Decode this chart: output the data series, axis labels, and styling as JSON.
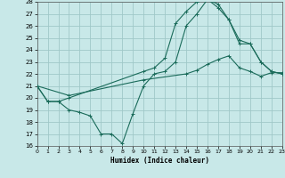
{
  "xlabel": "Humidex (Indice chaleur)",
  "xlim": [
    0,
    23
  ],
  "ylim": [
    16,
    28
  ],
  "yticks": [
    16,
    17,
    18,
    19,
    20,
    21,
    22,
    23,
    24,
    25,
    26,
    27,
    28
  ],
  "xticks": [
    0,
    1,
    2,
    3,
    4,
    5,
    6,
    7,
    8,
    9,
    10,
    11,
    12,
    13,
    14,
    15,
    16,
    17,
    18,
    19,
    20,
    21,
    22,
    23
  ],
  "bg_color": "#c8e8e8",
  "grid_color": "#a0c8c8",
  "line_color": "#1a6b5a",
  "lines": [
    {
      "x": [
        0,
        1,
        2,
        3,
        4,
        5,
        6,
        7,
        8,
        9,
        10,
        11,
        12,
        13,
        14,
        15,
        16,
        17,
        18,
        19,
        20,
        21,
        22,
        23
      ],
      "y": [
        21,
        19.7,
        19.7,
        19,
        18.8,
        18.5,
        17,
        17,
        16.2,
        18.7,
        21,
        22,
        22.2,
        23,
        26,
        27,
        28.2,
        27.8,
        26.5,
        24.5,
        24.5,
        23,
        22.2,
        22
      ]
    },
    {
      "x": [
        0,
        1,
        2,
        3,
        10,
        11,
        12,
        13,
        14,
        15,
        16,
        17,
        18,
        19,
        20,
        21,
        22,
        23
      ],
      "y": [
        21,
        19.7,
        19.7,
        20,
        22.2,
        22.5,
        23.3,
        26.2,
        27.2,
        28,
        28.2,
        27.5,
        26.5,
        24.8,
        24.5,
        23,
        22.2,
        22
      ]
    },
    {
      "x": [
        0,
        3,
        10,
        14,
        15,
        16,
        17,
        18,
        19,
        20,
        21,
        22,
        23
      ],
      "y": [
        21,
        20.2,
        21.5,
        22,
        22.3,
        22.8,
        23.2,
        23.5,
        22.5,
        22.2,
        21.8,
        22.1,
        22.1
      ]
    }
  ]
}
